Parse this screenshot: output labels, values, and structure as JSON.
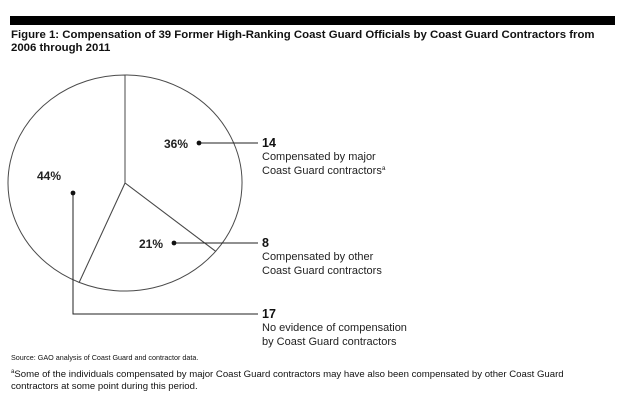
{
  "title": "Figure 1: Compensation of 39 Former High-Ranking Coast Guard Officials by Coast Guard Contractors from 2006 through 2011",
  "chart_data": {
    "type": "pie",
    "total": 39,
    "slices": [
      {
        "percent_label": "36%",
        "count": 14,
        "description_lines": [
          "Compensated by major",
          "Coast Guard contractors"
        ],
        "note_marker": "a"
      },
      {
        "percent_label": "21%",
        "count": 8,
        "description_lines": [
          "Compensated by other",
          "Coast Guard contractors"
        ],
        "note_marker": ""
      },
      {
        "percent_label": "44%",
        "count": 17,
        "description_lines": [
          "No evidence of compensation",
          "by Coast Guard contractors"
        ],
        "note_marker": ""
      }
    ]
  },
  "source": "Source: GAO analysis of Coast Guard and contractor data.",
  "footnote": {
    "marker": "a",
    "text": "Some of the individuals compensated by major Coast Guard contractors may have also been compensated by other Coast Guard contractors at some point during this period."
  }
}
